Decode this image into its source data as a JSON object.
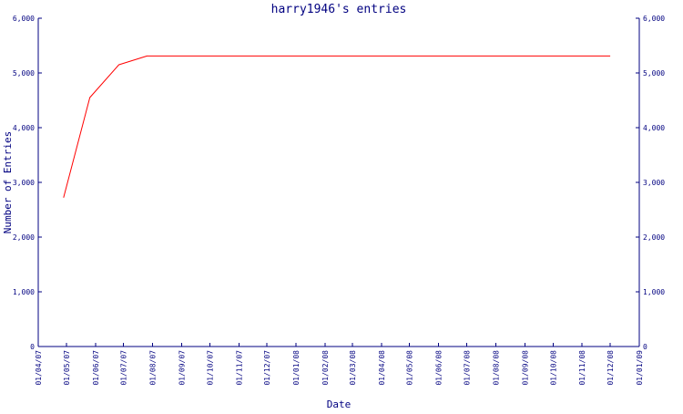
{
  "chart_data": {
    "type": "line",
    "title": "harry1946's entries",
    "xlabel": "Date",
    "ylabel": "Number of Entries",
    "x_ticks": [
      "01/04/07",
      "01/05/07",
      "01/06/07",
      "01/07/07",
      "01/08/07",
      "01/09/07",
      "01/10/07",
      "01/11/07",
      "01/12/07",
      "01/01/08",
      "01/02/08",
      "01/03/08",
      "01/04/08",
      "01/05/08",
      "01/06/08",
      "01/07/08",
      "01/08/08",
      "01/09/08",
      "01/10/08",
      "01/11/08",
      "01/12/08",
      "01/01/09"
    ],
    "y_ticks": [
      "0",
      "1,000",
      "2,000",
      "3,000",
      "4,000",
      "5,000",
      "6,000"
    ],
    "ylim": [
      0,
      6000
    ],
    "xlim": [
      "2007-04-01",
      "2009-01-01"
    ],
    "series": [
      {
        "color": "#ff0000",
        "points": [
          {
            "x": "2007-04-28",
            "y": 2720
          },
          {
            "x": "2007-05-26",
            "y": 4550
          },
          {
            "x": "2007-06-26",
            "y": 5150
          },
          {
            "x": "2007-07-26",
            "y": 5310
          },
          {
            "x": "2008-12-01",
            "y": 5310
          }
        ]
      }
    ],
    "grid": false,
    "legend": "none"
  },
  "colors": {
    "text": "#000080",
    "axes": "#000080",
    "background": "#ffffff"
  }
}
